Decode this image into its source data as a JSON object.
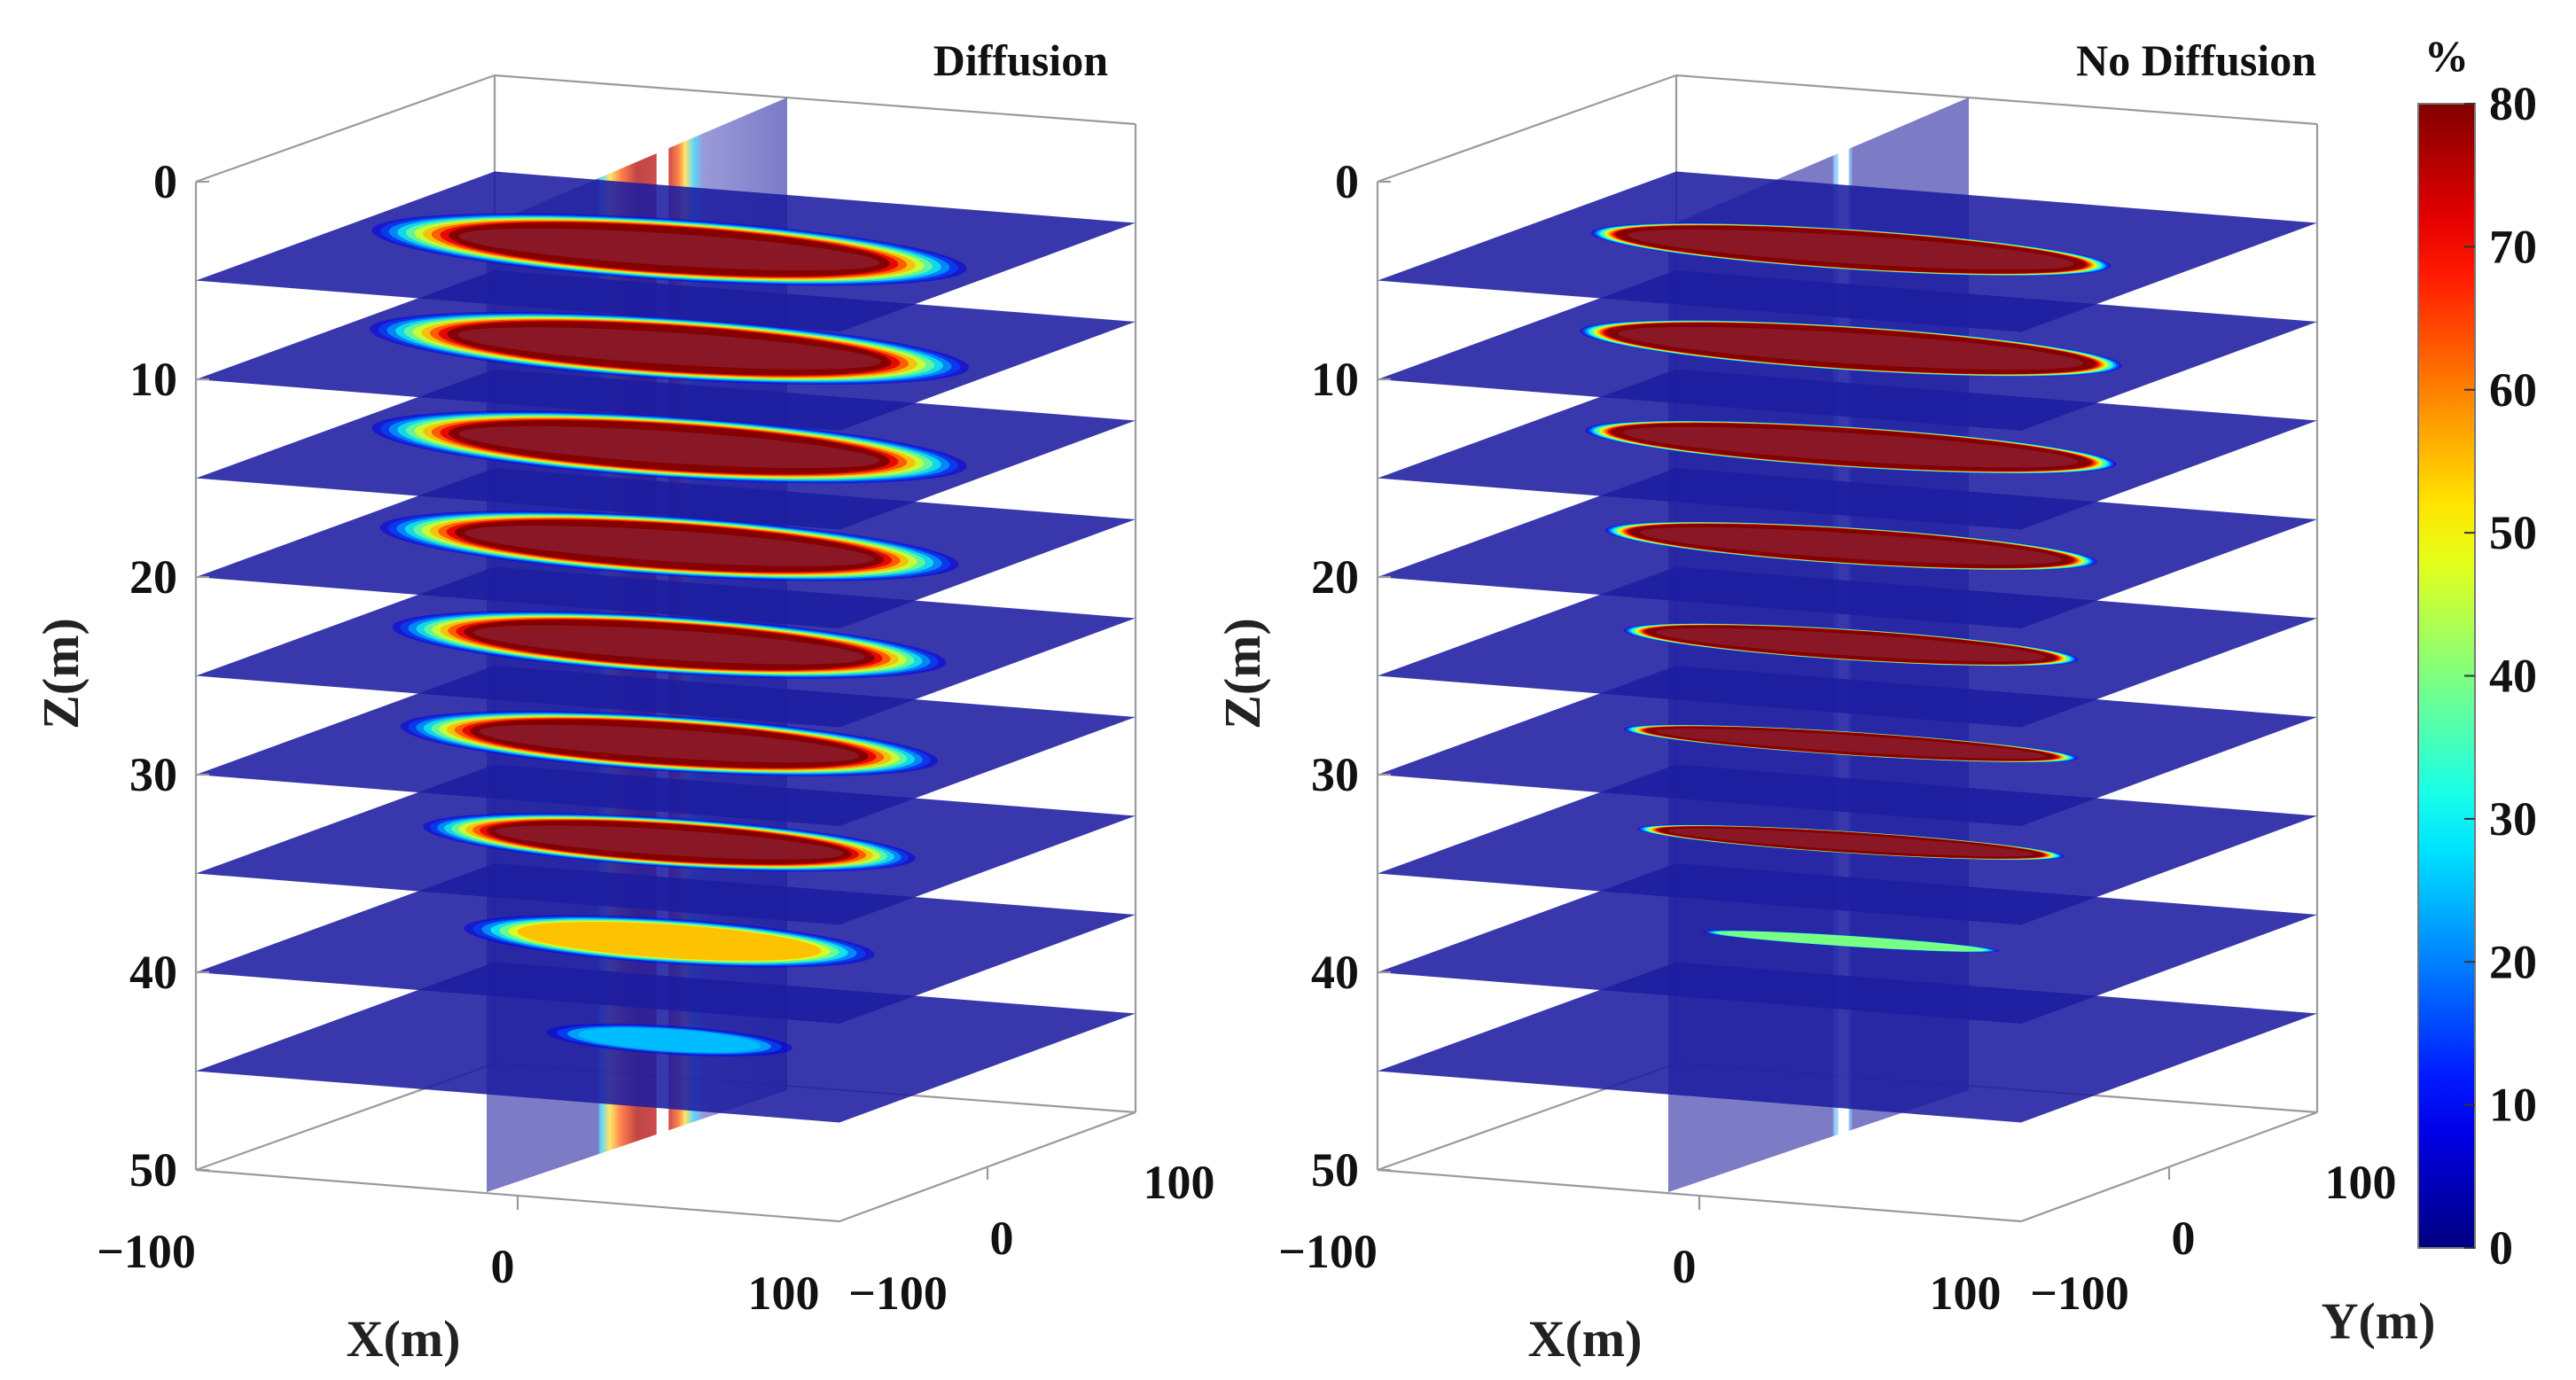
{
  "chart_data": [
    {
      "type": "3d-slice",
      "title": "Diffusion",
      "xlabel": "X(m)",
      "ylabel": "",
      "zlabel": "Z(m)",
      "x_ticks": [
        "−100",
        "0",
        "100"
      ],
      "y_ticks": [
        "−100",
        "0",
        "100"
      ],
      "z_ticks": [
        "0",
        "10",
        "20",
        "30",
        "40",
        "50"
      ],
      "xlim": [
        -100,
        100
      ],
      "ylim": [
        -100,
        100
      ],
      "zlim": [
        0,
        50
      ],
      "z_direction": "reversed",
      "slice_depths": [
        5,
        10,
        15,
        20,
        25,
        30,
        35,
        40,
        45
      ],
      "slice_peak_percent": [
        80,
        80,
        80,
        80,
        80,
        80,
        80,
        55,
        25
      ],
      "vertical_plane": "x = 0"
    },
    {
      "type": "3d-slice",
      "title": "No Diffusion",
      "xlabel": "X(m)",
      "ylabel": "Y(m)",
      "zlabel": "Z(m)",
      "x_ticks": [
        "−100",
        "0",
        "100"
      ],
      "y_ticks": [
        "−100",
        "0",
        "100"
      ],
      "z_ticks": [
        "0",
        "10",
        "20",
        "30",
        "40",
        "50"
      ],
      "xlim": [
        -100,
        100
      ],
      "ylim": [
        -100,
        100
      ],
      "zlim": [
        0,
        50
      ],
      "z_direction": "reversed",
      "slice_depths": [
        5,
        10,
        15,
        20,
        25,
        30,
        35,
        40,
        45
      ],
      "slice_peak_percent": [
        80,
        80,
        80,
        80,
        80,
        80,
        80,
        40,
        0
      ],
      "vertical_plane": "x = 0"
    }
  ],
  "colorbar": {
    "label": "%",
    "min": 0,
    "max": 80,
    "ticks": [
      "0",
      "10",
      "20",
      "30",
      "40",
      "50",
      "60",
      "70",
      "80"
    ],
    "colormap": "jet"
  }
}
